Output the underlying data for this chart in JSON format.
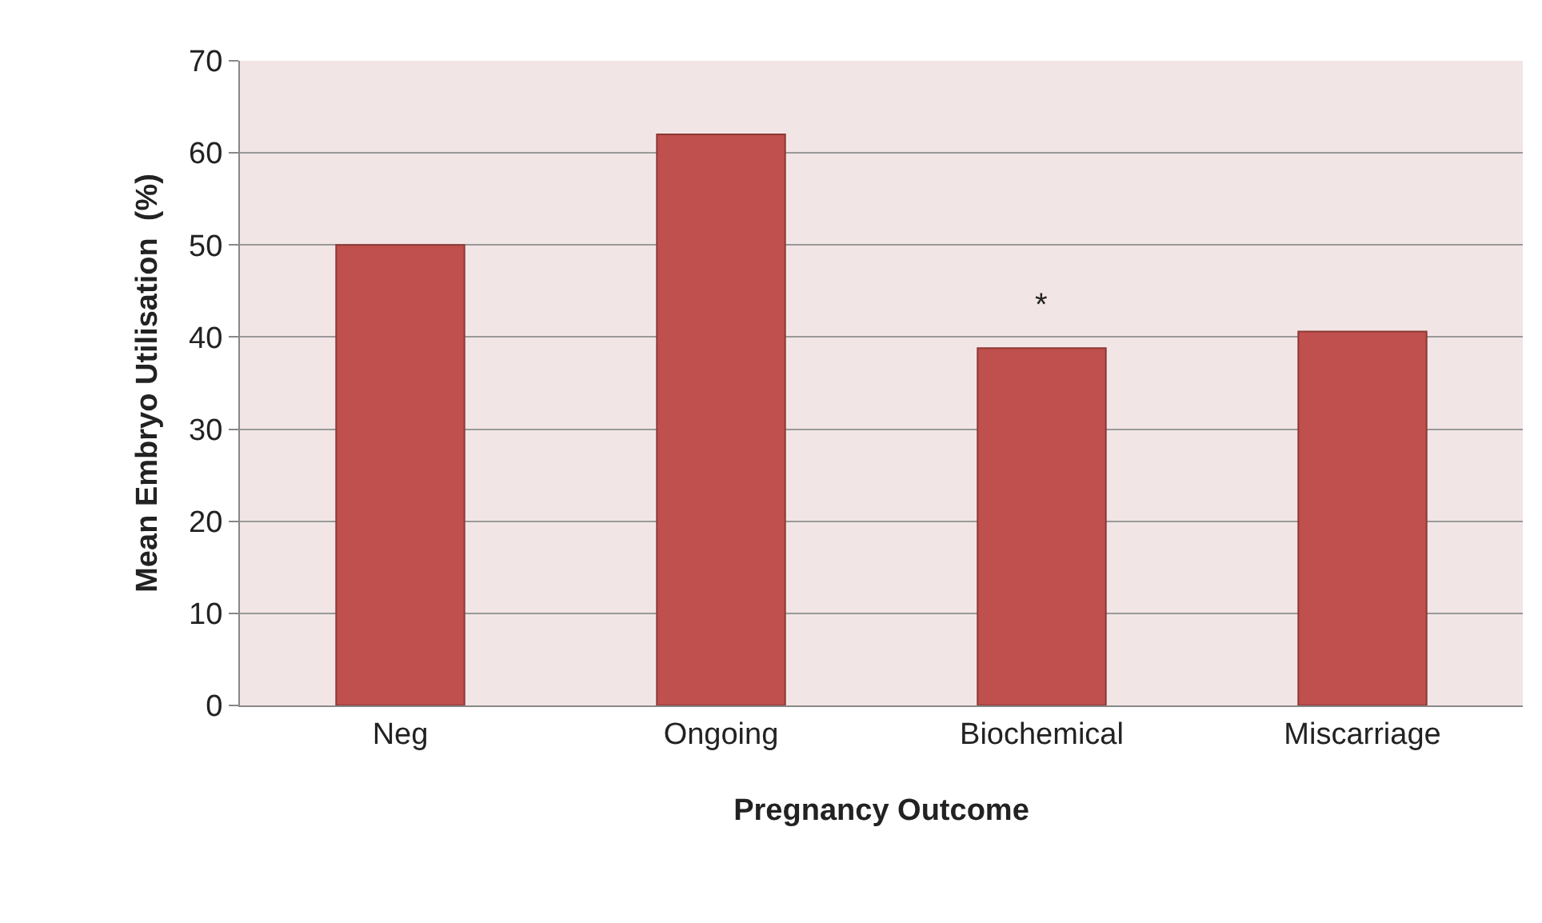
{
  "chart_data": {
    "type": "bar",
    "xlabel": "Pregnancy Outcome",
    "ylabel": "Mean Embryo Utilisation  (%)",
    "categories": [
      "Neg",
      "Ongoing",
      "Biochemical",
      "Miscarriage"
    ],
    "values": [
      50,
      62,
      38.8,
      40.6
    ],
    "color": "#c0504d",
    "ylim": [
      0,
      70
    ],
    "yticks": [
      0,
      10,
      20,
      30,
      40,
      50,
      60,
      70
    ],
    "grid": "y",
    "annotations": [
      {
        "text": "*",
        "x": "Biochemical",
        "y": 38.8
      }
    ]
  }
}
